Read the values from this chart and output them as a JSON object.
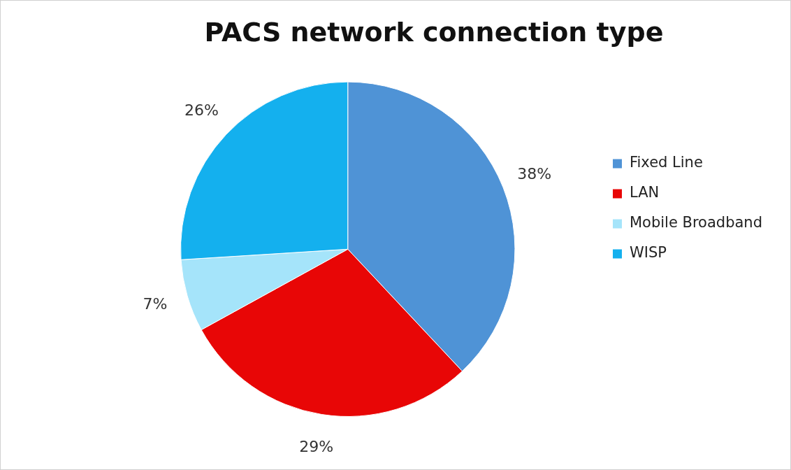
{
  "chart_data": {
    "type": "pie",
    "title": "PACS network connection type",
    "categories": [
      "Fixed Line",
      "LAN",
      "Mobile Broadband",
      "WISP"
    ],
    "values": [
      38,
      29,
      7,
      26
    ],
    "value_labels": [
      "38%",
      "29%",
      "7%",
      "26%"
    ],
    "colors": [
      "#4f93d6",
      "#e80606",
      "#a5e4fa",
      "#14b0ee"
    ],
    "legend": "right"
  }
}
